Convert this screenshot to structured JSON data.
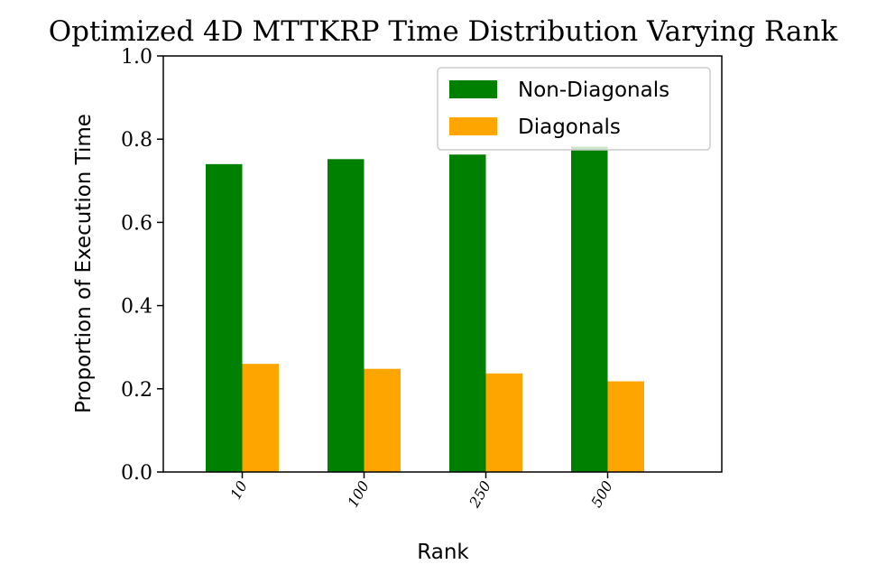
{
  "chart_data": {
    "type": "bar",
    "title": "Optimized 4D MTTKRP Time Distribution Varying Rank",
    "xlabel": "Rank",
    "ylabel": "Proportion of Execution Time",
    "categories": [
      "10",
      "100",
      "250",
      "500"
    ],
    "series": [
      {
        "name": "Non-Diagonals",
        "color": "#008000",
        "values": [
          0.74,
          0.752,
          0.763,
          0.782
        ]
      },
      {
        "name": "Diagonals",
        "color": "#ffa500",
        "values": [
          0.26,
          0.248,
          0.237,
          0.218
        ]
      }
    ],
    "ylim": [
      0,
      1.0
    ],
    "yticks": [
      "0.0",
      "0.2",
      "0.4",
      "0.6",
      "0.8",
      "1.0"
    ],
    "grid": false,
    "legend_position": "top-right"
  }
}
